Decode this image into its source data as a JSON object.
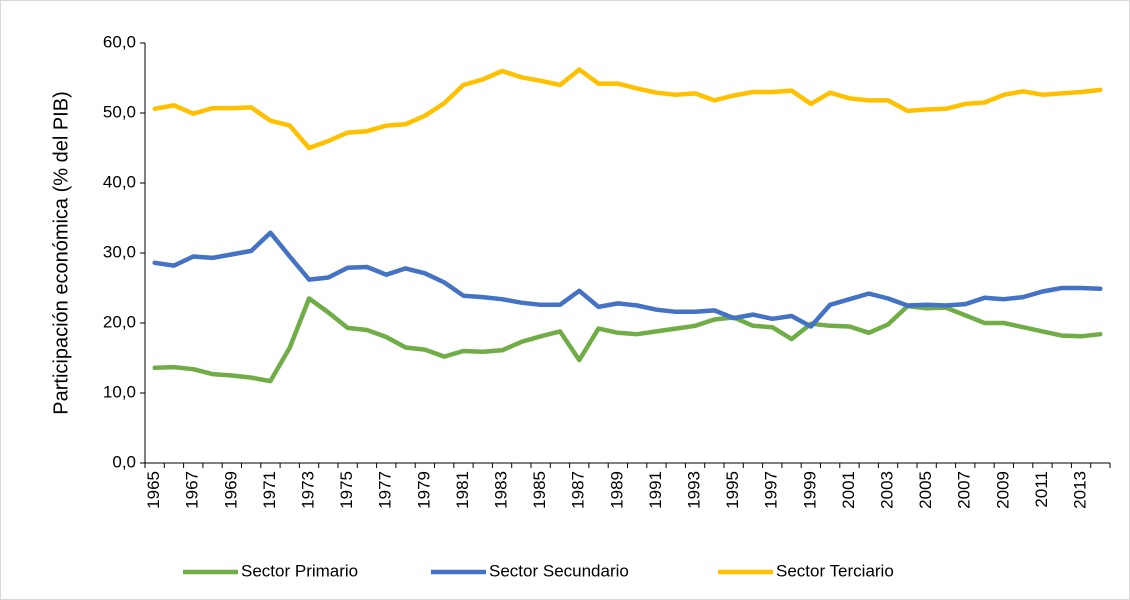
{
  "chart_data": {
    "type": "line",
    "y_label": "Participación económica (% del PIB)",
    "categories": [
      "1965",
      null,
      "1967",
      null,
      "1969",
      null,
      "1971",
      null,
      "1973",
      null,
      "1975",
      null,
      "1977",
      null,
      "1979",
      null,
      "1981",
      null,
      "1983",
      null,
      "1985",
      null,
      "1987",
      null,
      "1989",
      null,
      "1991",
      null,
      "1993",
      null,
      "1995",
      null,
      "1997",
      null,
      "1999",
      null,
      "2001",
      null,
      "2003",
      null,
      "2005",
      null,
      "2007",
      null,
      "2009",
      null,
      "2011",
      null,
      "2013",
      null
    ],
    "series": [
      {
        "name": "Sector Primario",
        "color": "#70ad47",
        "values": [
          13.6,
          13.7,
          13.4,
          12.7,
          12.5,
          12.2,
          11.7,
          16.5,
          23.5,
          21.5,
          19.3,
          19.0,
          18.0,
          16.5,
          16.2,
          15.2,
          16.0,
          15.9,
          16.1,
          17.3,
          18.1,
          18.8,
          14.7,
          19.2,
          18.6,
          18.4,
          18.8,
          19.2,
          19.6,
          20.5,
          20.8,
          19.6,
          19.4,
          17.7,
          19.9,
          19.6,
          19.5,
          18.6,
          19.8,
          22.4,
          22.1,
          22.2,
          21.1,
          20.0,
          20.0,
          19.4,
          18.8,
          18.2,
          18.1,
          18.4
        ]
      },
      {
        "name": "Sector Secundario",
        "color": "#4472c4",
        "values": [
          28.6,
          28.2,
          29.5,
          29.3,
          29.8,
          30.3,
          32.9,
          29.5,
          26.2,
          26.5,
          27.9,
          28.0,
          26.9,
          27.8,
          27.1,
          25.8,
          23.9,
          23.7,
          23.4,
          22.9,
          22.6,
          22.6,
          24.6,
          22.3,
          22.8,
          22.5,
          21.9,
          21.6,
          21.6,
          21.8,
          20.7,
          21.2,
          20.6,
          21.0,
          19.5,
          22.6,
          23.4,
          24.2,
          23.5,
          22.5,
          22.6,
          22.5,
          22.7,
          23.6,
          23.4,
          23.7,
          24.5,
          25.0,
          25.0,
          24.9
        ]
      },
      {
        "name": "Sector Terciario",
        "color": "#ffc000",
        "values": [
          50.6,
          51.1,
          49.9,
          50.7,
          50.7,
          50.8,
          48.9,
          48.2,
          45.0,
          46.0,
          47.2,
          47.4,
          48.2,
          48.4,
          49.6,
          51.4,
          54.0,
          54.8,
          56.0,
          55.1,
          54.6,
          54.0,
          56.2,
          54.2,
          54.2,
          53.5,
          52.9,
          52.6,
          52.8,
          51.8,
          52.5,
          53.0,
          53.0,
          53.2,
          51.3,
          52.9,
          52.1,
          51.8,
          51.8,
          50.3,
          50.5,
          50.6,
          51.3,
          51.5,
          52.6,
          53.1,
          52.6,
          52.8,
          53.0,
          53.3
        ]
      }
    ],
    "ylim": [
      0,
      60
    ],
    "yticks": [
      {
        "value": 0,
        "label": "0,0"
      },
      {
        "value": 10,
        "label": "10,0"
      },
      {
        "value": 20,
        "label": "20,0"
      },
      {
        "value": 30,
        "label": "30,0"
      },
      {
        "value": 40,
        "label": "40,0"
      },
      {
        "value": 50,
        "label": "50,0"
      },
      {
        "value": 60,
        "label": "60,0"
      }
    ],
    "grid": false,
    "legend": "bottom"
  }
}
